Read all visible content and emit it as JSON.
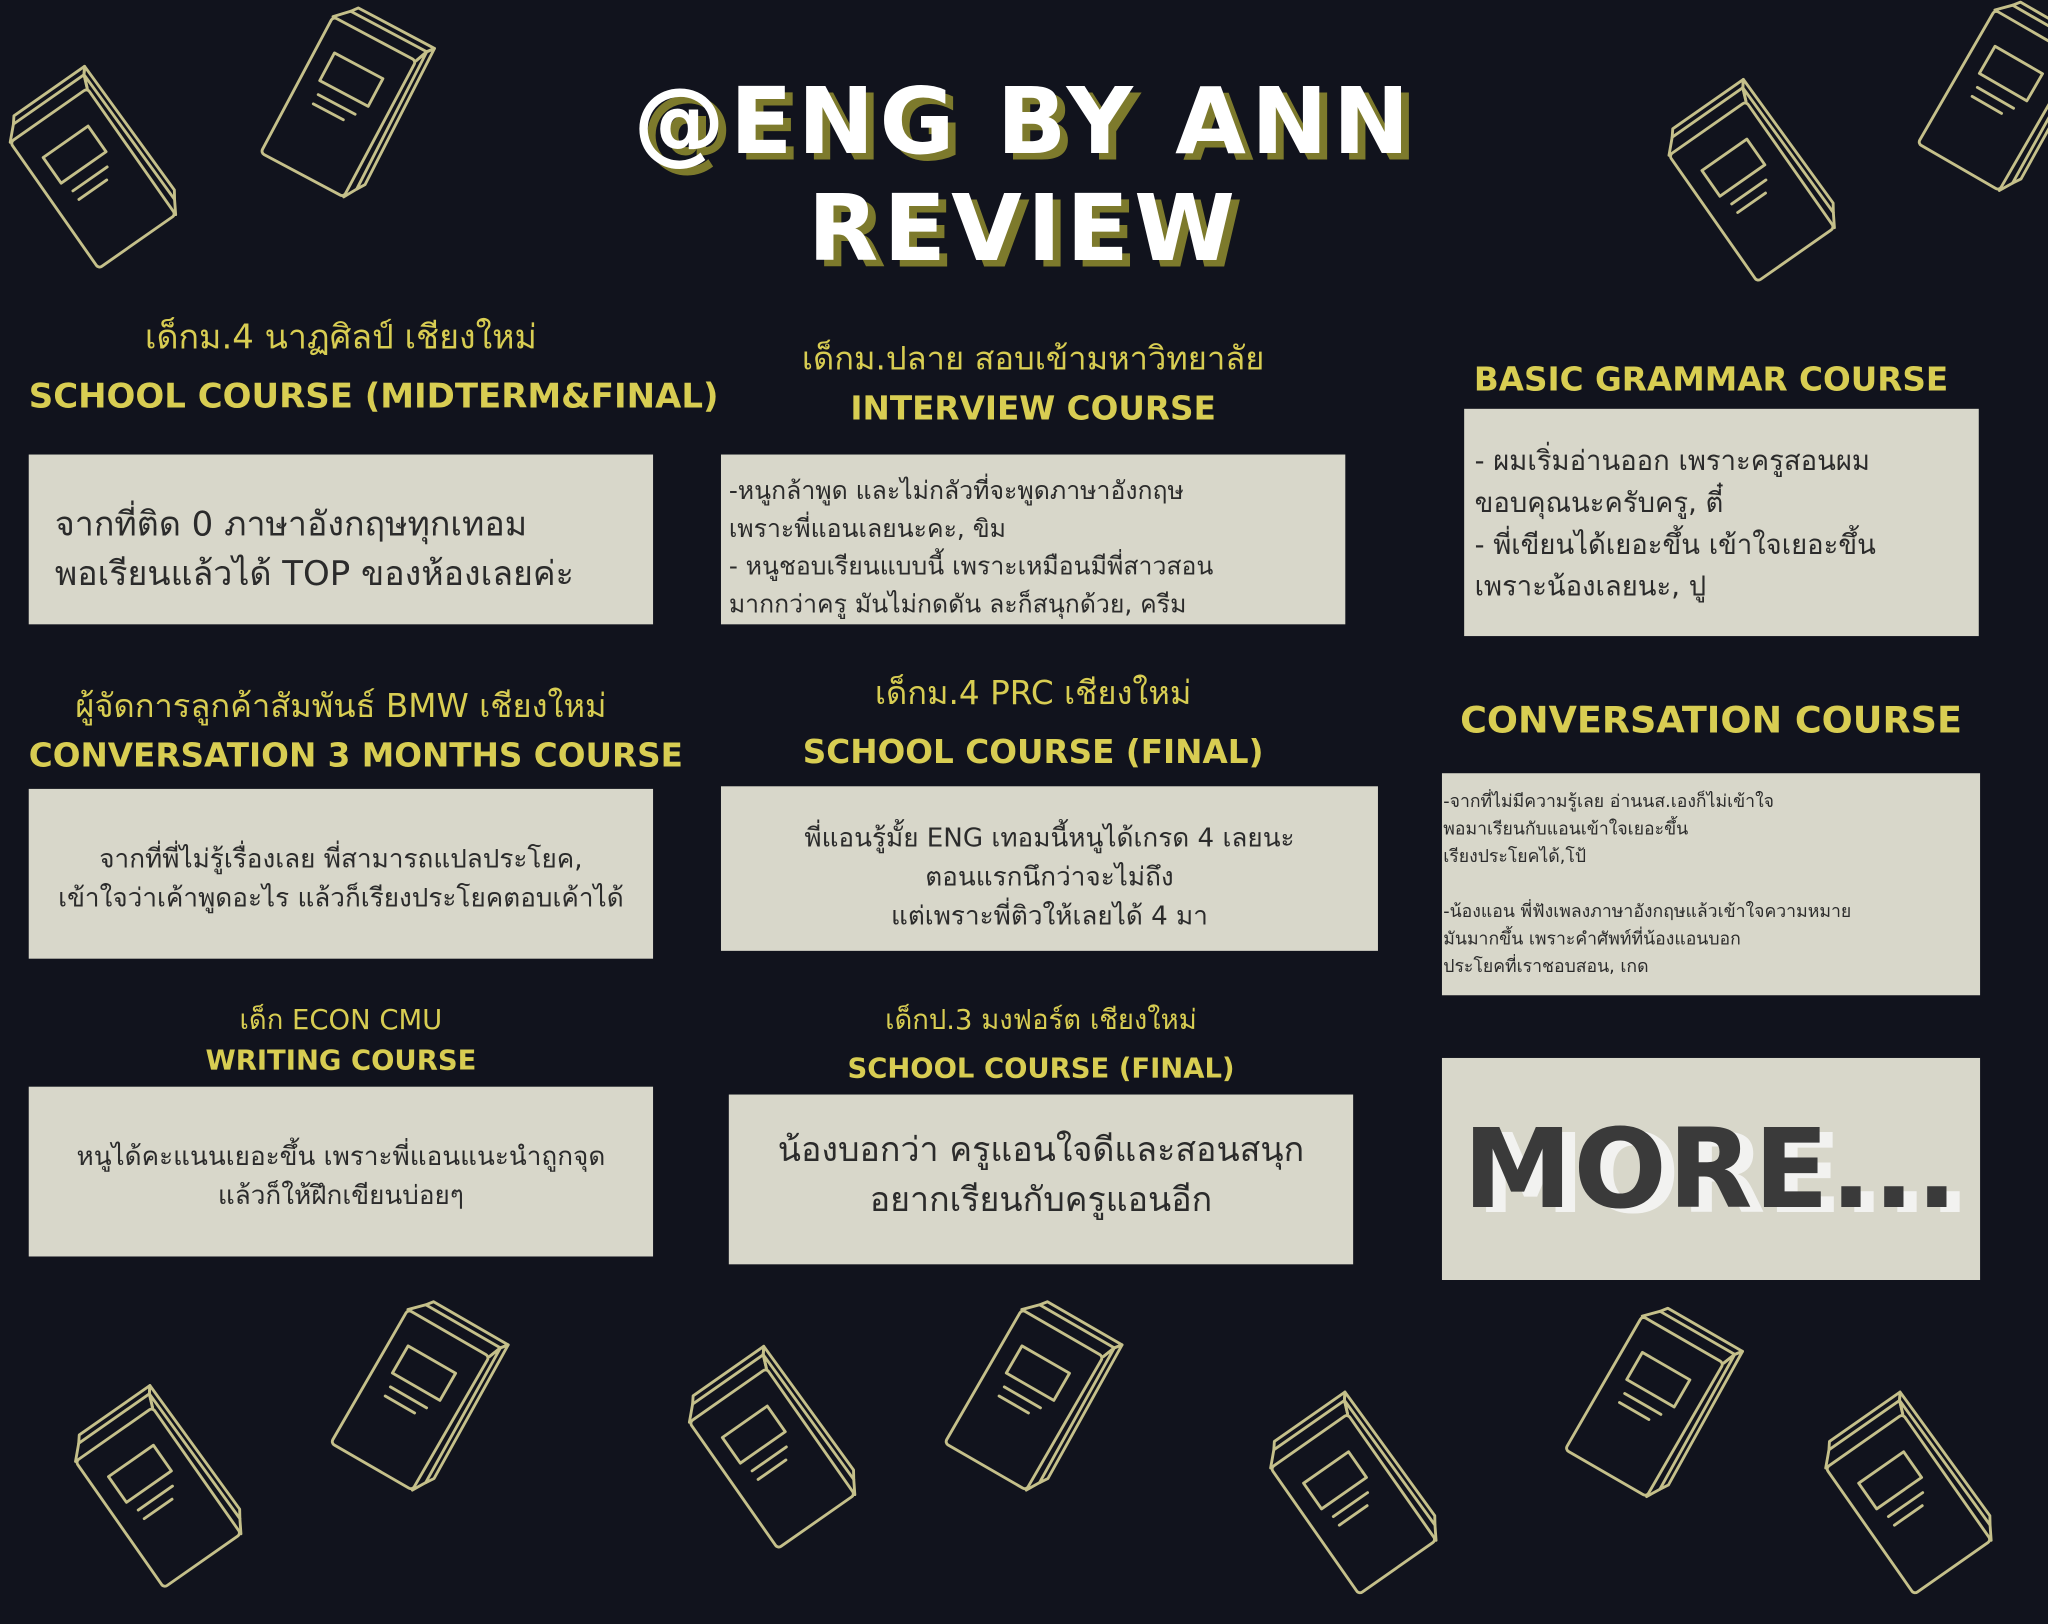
{
  "header": {
    "title_line1": "@ENG BY ANN",
    "title_line2": "REVIEW"
  },
  "reviews": [
    {
      "label_line1": "เด็กม.4 นาฏศิลป์ เชียงใหม่",
      "label_line2": "SCHOOL COURSE (MIDTERM&FINAL)",
      "lines": [
        "จากที่ติด 0 ภาษาอังกฤษทุกเทอม",
        "พอเรียนแล้วได้ TOP ของห้องเลยค่ะ"
      ]
    },
    {
      "label_line1": "ผู้จัดการลูกค้าสัมพันธ์ BMW เชียงใหม่",
      "label_line2": "CONVERSATION 3 MONTHS COURSE",
      "lines": [
        "จากที่พี่ไม่รู้เรื่องเลย พี่สามารถแปลประโยค,",
        "เข้าใจว่าเค้าพูดอะไร แล้วก็เรียงประโยคตอบเค้าได้"
      ]
    },
    {
      "label_line1": "เด็ก ECON CMU",
      "label_line2": "WRITING COURSE",
      "lines": [
        "หนูได้คะแนนเยอะขึ้น เพราะพี่แอนแนะนำถูกจุด",
        "แล้วก็ให้ฝึกเขียนบ่อยๆ"
      ]
    },
    {
      "label_line1": "เด็กม.ปลาย สอบเข้ามหาวิทยาลัย",
      "label_line2": "INTERVIEW COURSE",
      "lines": [
        "-หนูกล้าพูด และไม่กลัวที่จะพูดภาษาอังกฤษ",
        "เพราะพี่แอนเลยนะคะ, ขิม",
        "- หนูชอบเรียนแบบนี้ เพราะเหมือนมีพี่สาวสอน",
        "มากกว่าครู มันไม่กดดัน ละก็สนุกด้วย, ครีม"
      ]
    },
    {
      "label_line1": "เด็กม.4 PRC เชียงใหม่",
      "label_line2": "SCHOOL COURSE (FINAL)",
      "lines": [
        "พี่แอนรู้มั้ย ENG เทอมนี้หนูได้เกรด 4 เลยนะ",
        "ตอนแรกนึกว่าจะไม่ถึง",
        "แต่เพราะพี่ติวให้เลยได้ 4 มา"
      ]
    },
    {
      "label_line1": "เด็กป.3 มงฟอร์ต เชียงใหม่",
      "label_line2": "SCHOOL COURSE (FINAL)",
      "lines": [
        "น้องบอกว่า ครูแอนใจดีและสอนสนุก",
        "อยากเรียนกับครูแอนอีก"
      ]
    },
    {
      "label_line1": "BASIC GRAMMAR COURSE",
      "lines": [
        "- ผมเริ่มอ่านออก เพราะครูสอนผม",
        "ขอบคุณนะครับครู, ตี๋",
        "- พี่เขียนได้เยอะขึ้น เข้าใจเยอะขึ้น",
        "เพราะน้องเลยนะ, ปู"
      ]
    },
    {
      "label_line1": "CONVERSATION COURSE",
      "lines": [
        "-จากที่ไม่มีความรู้เลย อ่านนส.เองก็ไม่เข้าใจ",
        "พอมาเรียนกับแอนเข้าใจเยอะขึ้น",
        "เรียงประโยคได้,โป้",
        "",
        "-น้องแอน พี่ฟังเพลงภาษาอังกฤษแล้วเข้าใจความหมาย",
        "มันมากขึ้น เพราะคำศัพท์ที่น้องแอนบอก",
        "ประโยคที่เราชอบสอน, เกด"
      ]
    }
  ],
  "more": {
    "label": "MORE..."
  },
  "colors": {
    "background": "#11131d",
    "accent": "#d8cd52",
    "card": "#d8d7ca",
    "icon": "#c5c08a"
  },
  "icons": [
    "book-icon"
  ]
}
